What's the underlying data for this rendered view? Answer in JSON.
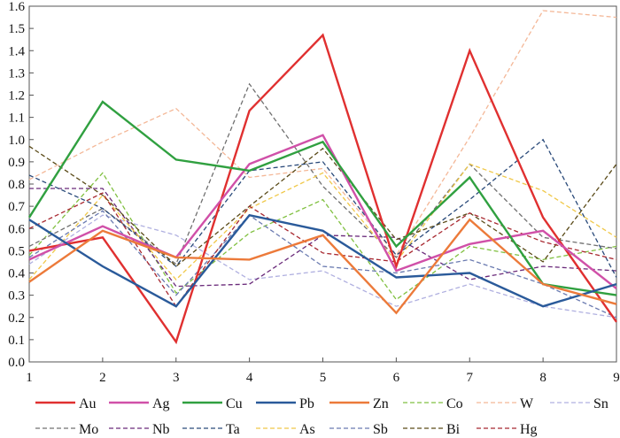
{
  "chart_data": {
    "type": "line",
    "title": "",
    "xlabel": "",
    "ylabel": "",
    "x": [
      1,
      2,
      3,
      4,
      5,
      6,
      7,
      8,
      9
    ],
    "xlim": [
      1,
      9
    ],
    "ylim": [
      0.0,
      1.6
    ],
    "yticks": [
      "0.0",
      "0.1",
      "0.2",
      "0.3",
      "0.4",
      "0.5",
      "0.6",
      "0.7",
      "0.8",
      "0.9",
      "1.0",
      "1.1",
      "1.2",
      "1.3",
      "1.4",
      "1.5",
      "1.6"
    ],
    "xticks": [
      "1",
      "2",
      "3",
      "4",
      "5",
      "6",
      "7",
      "8",
      "9"
    ],
    "grid": false,
    "legend_position": "bottom",
    "series": [
      {
        "name": "Au",
        "color": "#e03030",
        "dashed": false,
        "bold": true,
        "values": [
          0.5,
          0.56,
          0.09,
          1.13,
          1.47,
          0.43,
          1.4,
          0.65,
          0.18
        ]
      },
      {
        "name": "Ag",
        "color": "#d050a8",
        "dashed": false,
        "bold": true,
        "values": [
          0.46,
          0.61,
          0.47,
          0.89,
          1.02,
          0.41,
          0.53,
          0.59,
          0.33
        ]
      },
      {
        "name": "Cu",
        "color": "#30a040",
        "dashed": false,
        "bold": true,
        "values": [
          0.65,
          1.17,
          0.91,
          0.86,
          0.99,
          0.52,
          0.83,
          0.35,
          0.3
        ]
      },
      {
        "name": "Pb",
        "color": "#2a5a9a",
        "dashed": false,
        "bold": true,
        "values": [
          0.64,
          0.43,
          0.25,
          0.66,
          0.59,
          0.38,
          0.4,
          0.25,
          0.35
        ]
      },
      {
        "name": "Zn",
        "color": "#ec7a3a",
        "dashed": false,
        "bold": true,
        "values": [
          0.36,
          0.59,
          0.47,
          0.46,
          0.57,
          0.22,
          0.64,
          0.35,
          0.26
        ]
      },
      {
        "name": "Co",
        "color": "#80c040",
        "dashed": true,
        "bold": false,
        "values": [
          0.48,
          0.85,
          0.31,
          0.58,
          0.73,
          0.28,
          0.52,
          0.46,
          0.52
        ]
      },
      {
        "name": "W",
        "color": "#f4b898",
        "dashed": true,
        "bold": false,
        "values": [
          0.82,
          0.99,
          1.14,
          0.83,
          0.87,
          0.48,
          1.01,
          1.58,
          1.55
        ]
      },
      {
        "name": "Sn",
        "color": "#b0b0e0",
        "dashed": true,
        "bold": false,
        "values": [
          0.44,
          0.66,
          0.57,
          0.37,
          0.41,
          0.25,
          0.35,
          0.25,
          0.2
        ]
      },
      {
        "name": "Mo",
        "color": "#707070",
        "dashed": true,
        "bold": false,
        "values": [
          0.52,
          0.69,
          0.44,
          1.25,
          0.79,
          0.47,
          0.89,
          0.56,
          0.51
        ]
      },
      {
        "name": "Nb",
        "color": "#6a2a7a",
        "dashed": true,
        "bold": false,
        "values": [
          0.78,
          0.78,
          0.34,
          0.35,
          0.57,
          0.56,
          0.37,
          0.43,
          0.41
        ]
      },
      {
        "name": "Ta",
        "color": "#2a4a7a",
        "dashed": true,
        "bold": false,
        "values": [
          0.84,
          0.69,
          0.43,
          0.86,
          0.9,
          0.48,
          0.73,
          1.0,
          0.38
        ]
      },
      {
        "name": "As",
        "color": "#f0c848",
        "dashed": true,
        "bold": false,
        "values": [
          0.37,
          0.75,
          0.37,
          0.69,
          0.85,
          0.45,
          0.89,
          0.77,
          0.56
        ]
      },
      {
        "name": "Sb",
        "color": "#6a7ab0",
        "dashed": true,
        "bold": false,
        "values": [
          0.47,
          0.68,
          0.3,
          0.66,
          0.43,
          0.4,
          0.46,
          0.35,
          0.2
        ]
      },
      {
        "name": "Bi",
        "color": "#5a4a18",
        "dashed": true,
        "bold": false,
        "values": [
          0.97,
          0.75,
          0.43,
          0.7,
          0.96,
          0.55,
          0.67,
          0.45,
          0.89
        ]
      },
      {
        "name": "Hg",
        "color": "#a82830",
        "dashed": true,
        "bold": false,
        "values": [
          0.6,
          0.76,
          0.25,
          0.7,
          0.49,
          0.45,
          0.67,
          0.54,
          0.46
        ]
      }
    ]
  }
}
